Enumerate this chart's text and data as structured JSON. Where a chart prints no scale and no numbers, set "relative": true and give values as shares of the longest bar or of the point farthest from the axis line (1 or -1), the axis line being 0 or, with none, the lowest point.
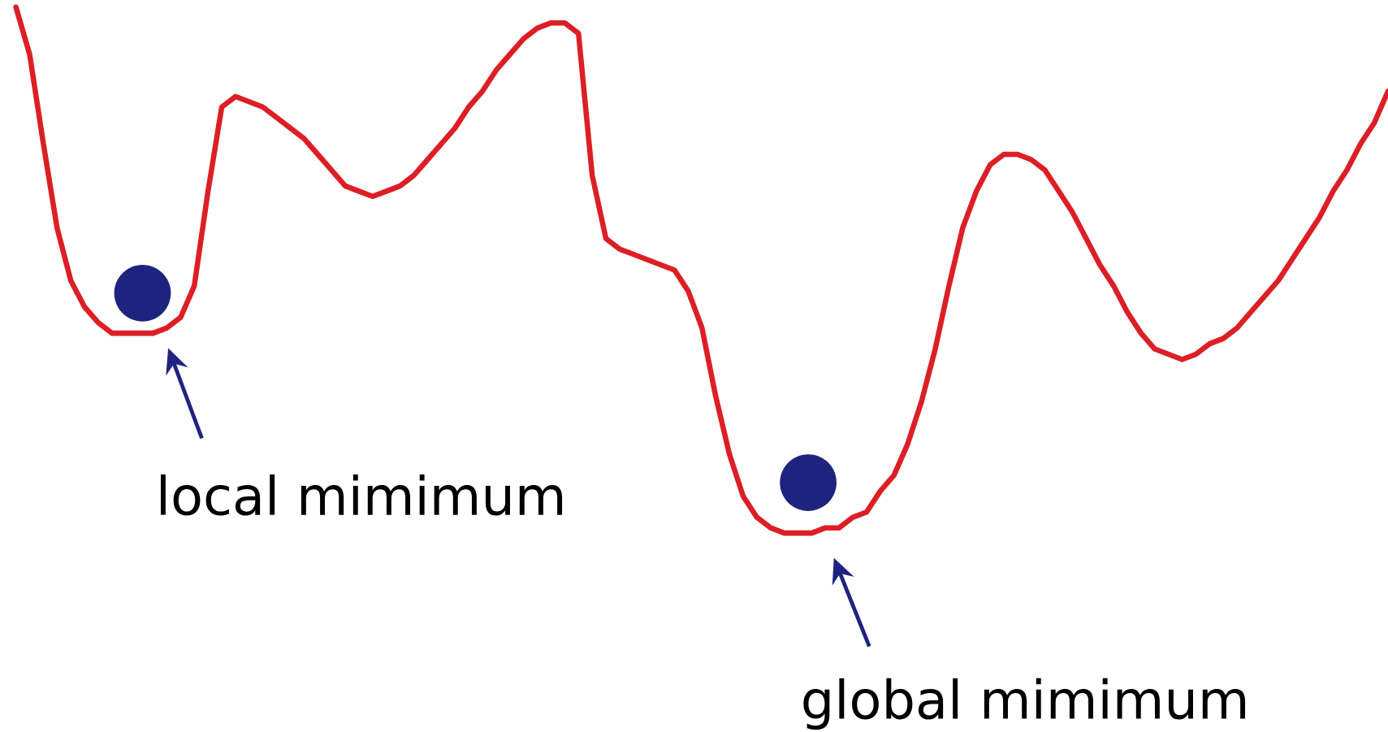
{
  "chart_data": {
    "type": "line",
    "relative": true,
    "categories": [
      null,
      null,
      null,
      null,
      null,
      null,
      null,
      null,
      null,
      null,
      null,
      null,
      null,
      null,
      null,
      null,
      null,
      null,
      null,
      null,
      null,
      null,
      null,
      null,
      null,
      null,
      null,
      null,
      null,
      null,
      null,
      null,
      null,
      null,
      null,
      null,
      null,
      null,
      null,
      null,
      null,
      null,
      null,
      null,
      null,
      null,
      null,
      null,
      null,
      null,
      null,
      null,
      null,
      null,
      null,
      null,
      null,
      null,
      null,
      null,
      null,
      null,
      null,
      null,
      null,
      null,
      null,
      null,
      null,
      null,
      null,
      null,
      null,
      null,
      null,
      null,
      null,
      null,
      null,
      null,
      null,
      null,
      null,
      null,
      null,
      null,
      null,
      null,
      null,
      null,
      null,
      null,
      null,
      null,
      null,
      null,
      null,
      null,
      null,
      null,
      null
    ],
    "series": [
      {
        "color": "#dc1f26",
        "values": [
          1.0,
          0.91,
          0.74,
          0.58,
          0.48,
          0.43,
          0.4,
          0.38,
          0.38,
          0.38,
          0.38,
          0.39,
          0.41,
          0.47,
          0.65,
          0.81,
          0.83,
          0.82,
          0.81,
          0.79,
          0.77,
          0.75,
          0.72,
          0.69,
          0.66,
          0.65,
          0.64,
          0.65,
          0.66,
          0.68,
          0.71,
          0.74,
          0.77,
          0.81,
          0.84,
          0.88,
          0.91,
          0.94,
          0.96,
          0.97,
          0.97,
          0.95,
          0.68,
          0.56,
          0.54,
          0.53,
          0.52,
          0.51,
          0.5,
          0.46,
          0.39,
          0.26,
          0.15,
          0.07,
          0.03,
          0.01,
          0.0,
          0.0,
          0.0,
          0.01,
          0.01,
          0.03,
          0.04,
          0.08,
          0.11,
          0.17,
          0.25,
          0.35,
          0.47,
          0.58,
          0.65,
          0.7,
          0.72,
          0.72,
          0.71,
          0.69,
          0.65,
          0.61,
          0.56,
          0.51,
          0.47,
          0.42,
          0.38,
          0.35,
          0.34,
          0.33,
          0.34,
          0.36,
          0.37,
          0.39,
          0.42,
          0.45,
          0.48,
          0.52,
          0.56,
          0.6,
          0.65,
          0.69,
          0.74,
          0.78,
          0.84
        ]
      }
    ],
    "annotations": [
      "local mimimum",
      "global mimimum"
    ]
  }
}
